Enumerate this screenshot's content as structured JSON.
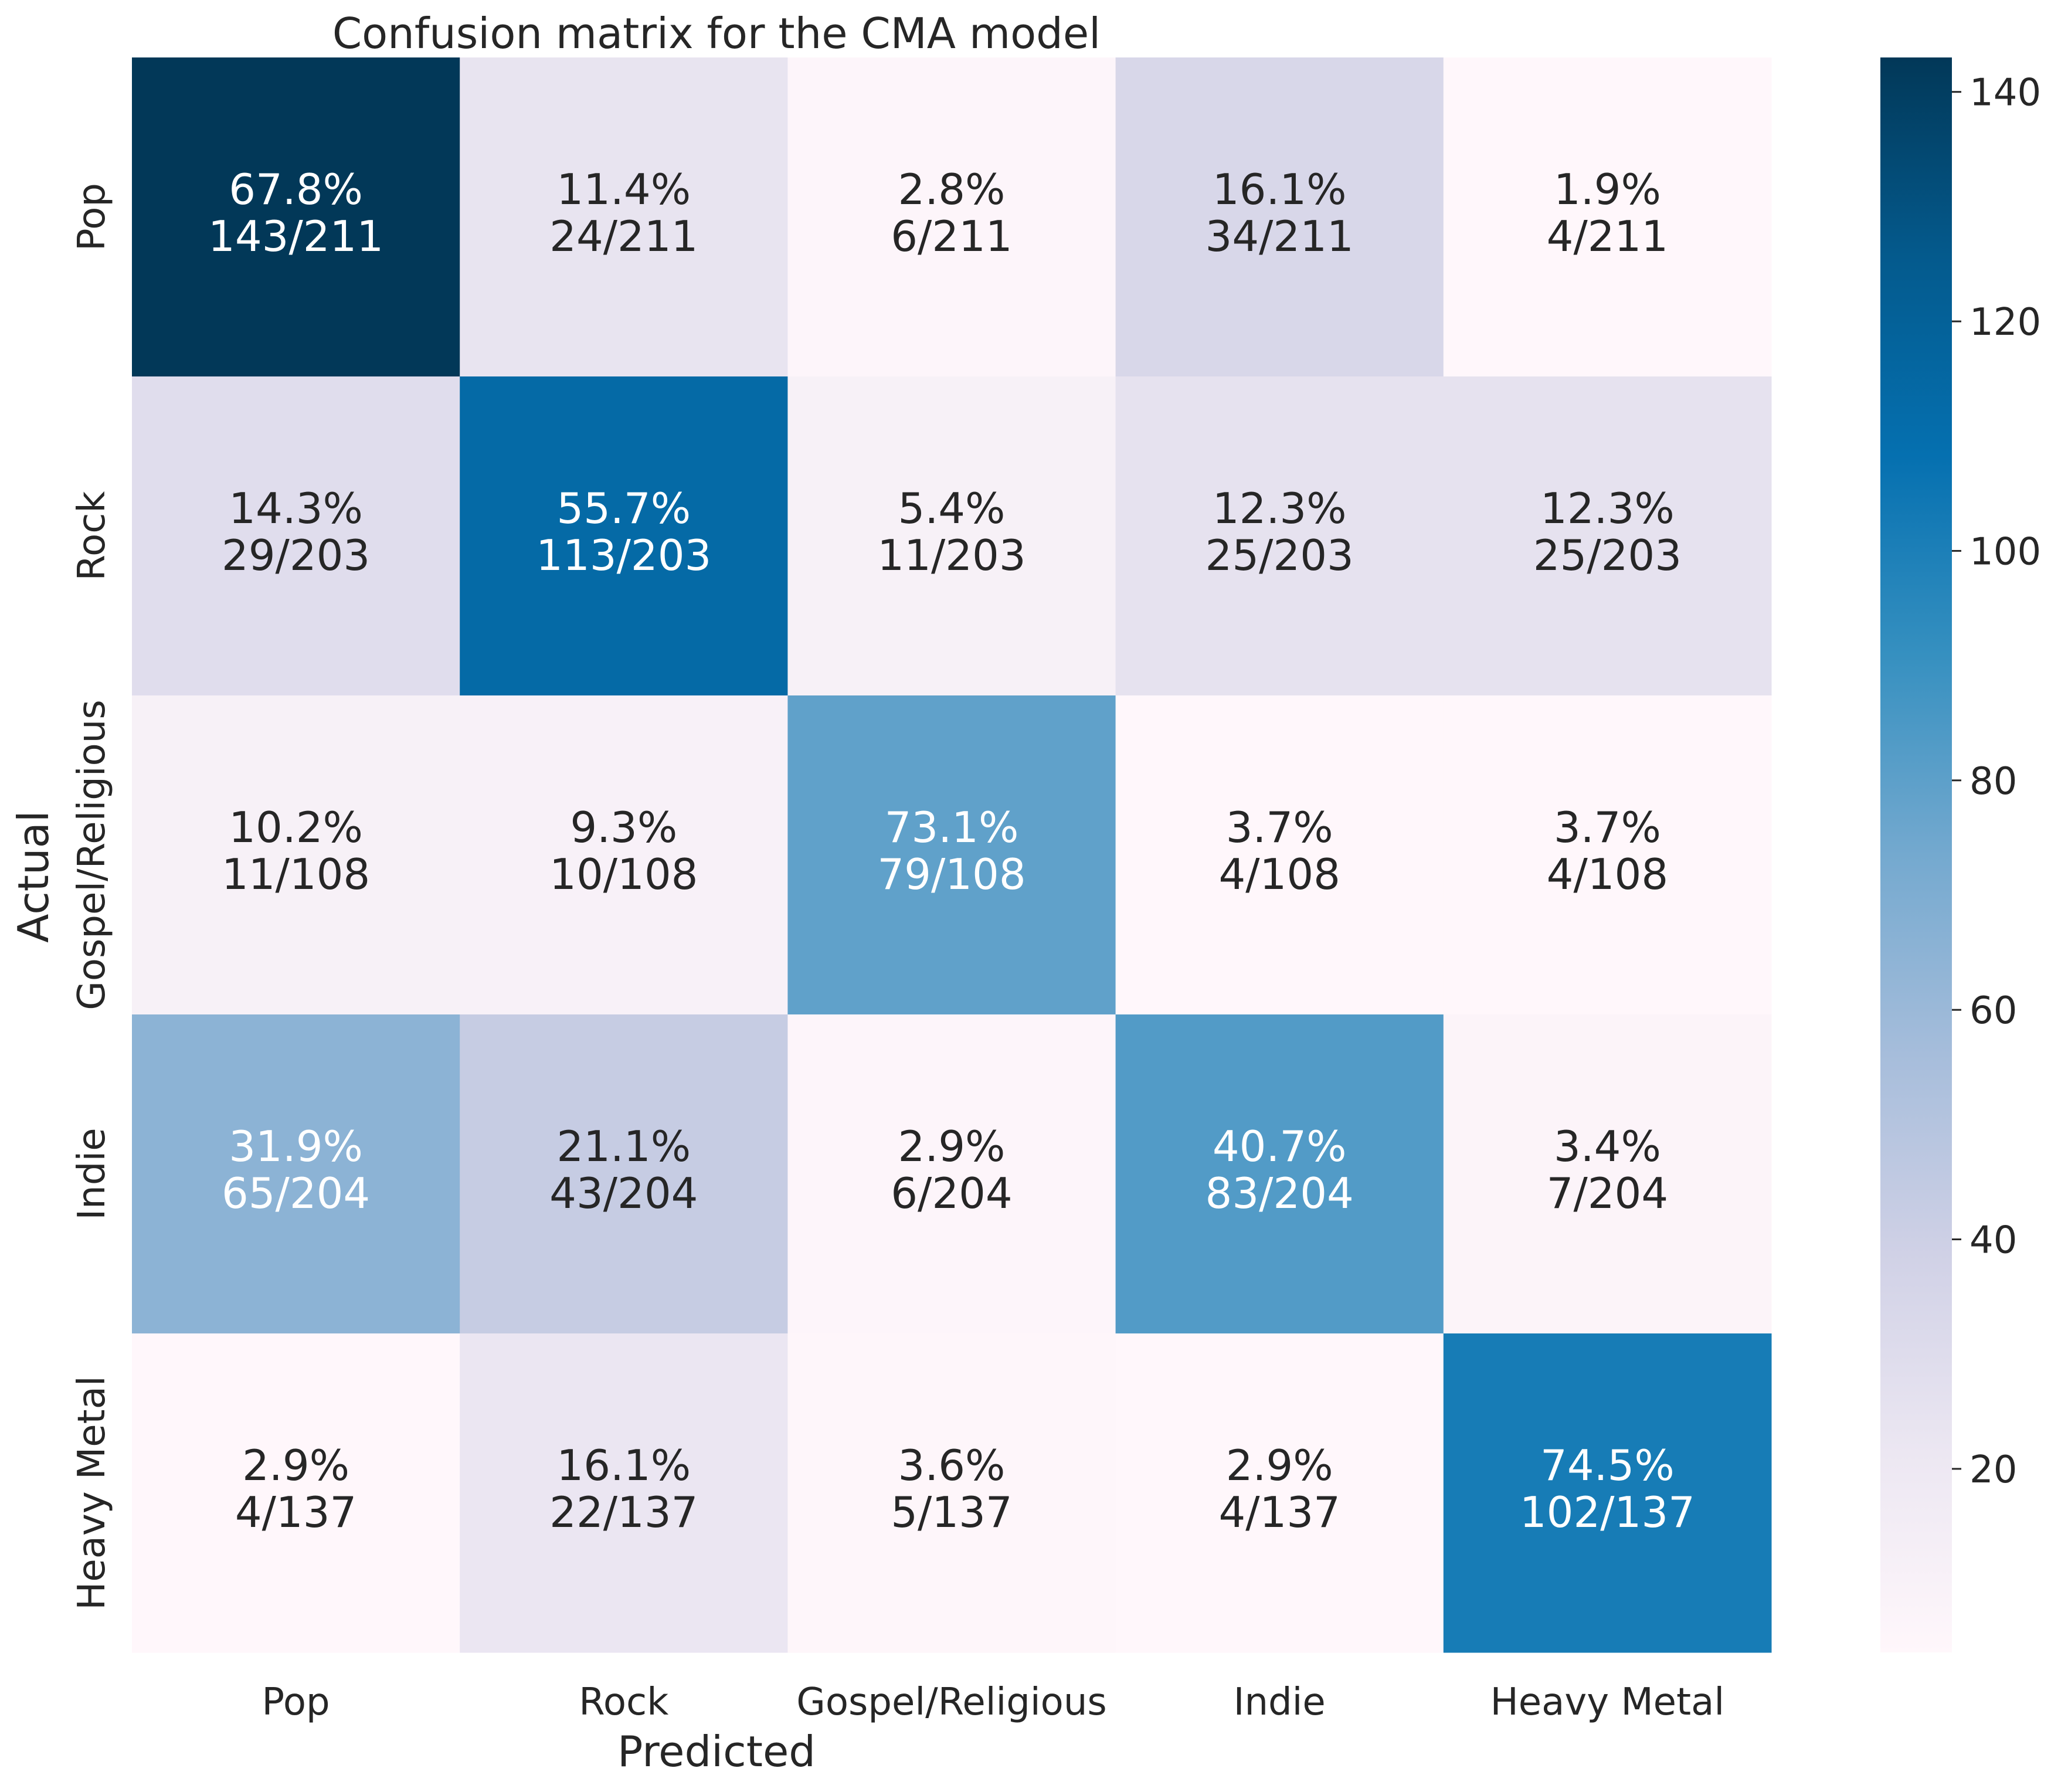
{
  "chart_data": {
    "type": "heatmap",
    "title": "Confusion matrix for the CMA model",
    "xlabel": "Predicted",
    "ylabel": "Actual",
    "x_categories": [
      "Pop",
      "Rock",
      "Gospel/Religious",
      "Indie",
      "Heavy Metal"
    ],
    "y_categories": [
      "Pop",
      "Rock",
      "Gospel/Religious",
      "Indie",
      "Heavy Metal"
    ],
    "counts": [
      [
        143,
        24,
        6,
        34,
        4
      ],
      [
        29,
        113,
        11,
        25,
        25
      ],
      [
        11,
        10,
        79,
        4,
        4
      ],
      [
        65,
        43,
        6,
        83,
        7
      ],
      [
        4,
        22,
        5,
        4,
        102
      ]
    ],
    "row_totals": [
      211,
      203,
      108,
      204,
      137
    ],
    "cell_labels": [
      [
        [
          "67.8%",
          "143/211"
        ],
        [
          "11.4%",
          "24/211"
        ],
        [
          "2.8%",
          "6/211"
        ],
        [
          "16.1%",
          "34/211"
        ],
        [
          "1.9%",
          "4/211"
        ]
      ],
      [
        [
          "14.3%",
          "29/203"
        ],
        [
          "55.7%",
          "113/203"
        ],
        [
          "5.4%",
          "11/203"
        ],
        [
          "12.3%",
          "25/203"
        ],
        [
          "12.3%",
          "25/203"
        ]
      ],
      [
        [
          "10.2%",
          "11/108"
        ],
        [
          "9.3%",
          "10/108"
        ],
        [
          "73.1%",
          "79/108"
        ],
        [
          "3.7%",
          "4/108"
        ],
        [
          "3.7%",
          "4/108"
        ]
      ],
      [
        [
          "31.9%",
          "65/204"
        ],
        [
          "21.1%",
          "43/204"
        ],
        [
          "2.9%",
          "6/204"
        ],
        [
          "40.7%",
          "83/204"
        ],
        [
          "3.4%",
          "7/204"
        ]
      ],
      [
        [
          "2.9%",
          "4/137"
        ],
        [
          "16.1%",
          "22/137"
        ],
        [
          "3.6%",
          "5/137"
        ],
        [
          "2.9%",
          "4/137"
        ],
        [
          "74.5%",
          "102/137"
        ]
      ]
    ],
    "colorbar": {
      "range": [
        4,
        143
      ],
      "ticks": [
        20,
        40,
        60,
        80,
        100,
        120,
        140
      ],
      "colormap": "PuBu"
    },
    "colors": {
      "text_dark": "#262626",
      "text_light": "#ffffff",
      "scale": [
        "#fff7fb",
        "#ece7f2",
        "#d0d1e6",
        "#a6bddb",
        "#74a9cf",
        "#3690c0",
        "#0570b0",
        "#045a8d",
        "#023858"
      ]
    }
  }
}
